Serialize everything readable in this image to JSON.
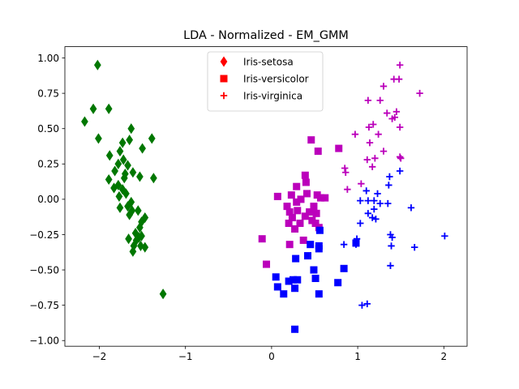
{
  "chart_data": {
    "type": "scatter",
    "title": "LDA - Normalized - EM_GMM",
    "xlabel": "",
    "ylabel": "",
    "xlim": [
      -2.4,
      2.27
    ],
    "ylim": [
      -1.04,
      1.08
    ],
    "x_ticks": [
      -2,
      -1,
      0,
      1,
      2
    ],
    "x_tick_labels": [
      "−2",
      "−1",
      "0",
      "1",
      "2"
    ],
    "y_ticks": [
      -1.0,
      -0.75,
      -0.5,
      -0.25,
      0.0,
      0.25,
      0.5,
      0.75,
      1.0
    ],
    "y_tick_labels": [
      "−1.00",
      "−0.75",
      "−0.50",
      "−0.25",
      "0.00",
      "0.25",
      "0.50",
      "0.75",
      "1.00"
    ],
    "grid": false,
    "legend_position": "top-center",
    "legend": [
      {
        "label": "Iris-setosa",
        "marker": "diamond",
        "color": "#ff0000"
      },
      {
        "label": "Iris-versicolor",
        "marker": "square",
        "color": "#ff0000"
      },
      {
        "label": "Iris-virginica",
        "marker": "plus",
        "color": "#ff0000"
      }
    ],
    "series": [
      {
        "name": "Iris-setosa",
        "marker": "diamond",
        "color": "#007700",
        "points": [
          [
            -2.02,
            0.95
          ],
          [
            -2.07,
            0.64
          ],
          [
            -1.89,
            0.64
          ],
          [
            -2.17,
            0.55
          ],
          [
            -1.63,
            0.5
          ],
          [
            -2.01,
            0.43
          ],
          [
            -1.39,
            0.43
          ],
          [
            -1.73,
            0.4
          ],
          [
            -1.65,
            0.42
          ],
          [
            -1.5,
            0.36
          ],
          [
            -1.88,
            0.31
          ],
          [
            -1.76,
            0.34
          ],
          [
            -1.72,
            0.28
          ],
          [
            -1.78,
            0.25
          ],
          [
            -1.67,
            0.24
          ],
          [
            -1.82,
            0.2
          ],
          [
            -1.7,
            0.18
          ],
          [
            -1.61,
            0.19
          ],
          [
            -1.89,
            0.14
          ],
          [
            -1.71,
            0.15
          ],
          [
            -1.53,
            0.16
          ],
          [
            -1.37,
            0.15
          ],
          [
            -1.78,
            0.1
          ],
          [
            -1.73,
            0.07
          ],
          [
            -1.83,
            0.08
          ],
          [
            -1.77,
            0.02
          ],
          [
            -1.69,
            0.04
          ],
          [
            -1.63,
            -0.02
          ],
          [
            -1.76,
            -0.06
          ],
          [
            -1.67,
            -0.05
          ],
          [
            -1.62,
            -0.08
          ],
          [
            -1.55,
            -0.08
          ],
          [
            -1.65,
            -0.11
          ],
          [
            -1.51,
            -0.16
          ],
          [
            -1.47,
            -0.13
          ],
          [
            -1.53,
            -0.2
          ],
          [
            -1.58,
            -0.24
          ],
          [
            -1.54,
            -0.27
          ],
          [
            -1.66,
            -0.28
          ],
          [
            -1.51,
            -0.26
          ],
          [
            -1.57,
            -0.29
          ],
          [
            -1.52,
            -0.33
          ],
          [
            -1.6,
            -0.33
          ],
          [
            -1.47,
            -0.34
          ],
          [
            -1.61,
            -0.37
          ],
          [
            -1.26,
            -0.67
          ]
        ]
      },
      {
        "name": "Iris-versicolor",
        "marker": "square",
        "color": "#bb00bb",
        "points": [
          [
            0.46,
            0.42
          ],
          [
            0.54,
            0.34
          ],
          [
            0.78,
            0.36
          ],
          [
            0.39,
            0.17
          ],
          [
            0.4,
            0.12
          ],
          [
            0.29,
            0.09
          ],
          [
            0.07,
            0.02
          ],
          [
            0.23,
            0.03
          ],
          [
            0.34,
            0.0
          ],
          [
            0.57,
            0.01
          ],
          [
            0.62,
            0.01
          ],
          [
            0.41,
            0.04
          ],
          [
            0.53,
            0.03
          ],
          [
            0.29,
            -0.02
          ],
          [
            0.18,
            -0.05
          ],
          [
            0.49,
            -0.05
          ],
          [
            0.3,
            -0.08
          ],
          [
            0.21,
            -0.09
          ],
          [
            0.44,
            -0.09
          ],
          [
            0.52,
            -0.1
          ],
          [
            0.24,
            -0.13
          ],
          [
            0.39,
            -0.12
          ],
          [
            0.47,
            -0.15
          ],
          [
            0.2,
            -0.17
          ],
          [
            0.33,
            -0.17
          ],
          [
            0.27,
            -0.21
          ],
          [
            0.51,
            -0.17
          ],
          [
            0.55,
            -0.2
          ],
          [
            -0.11,
            -0.28
          ],
          [
            0.37,
            -0.29
          ],
          [
            0.21,
            -0.32
          ],
          [
            -0.06,
            -0.46
          ]
        ]
      },
      {
        "name": "Iris-versicolor",
        "marker": "square",
        "color": "#0000ff",
        "points": [
          [
            0.56,
            -0.22
          ],
          [
            0.45,
            -0.32
          ],
          [
            0.55,
            -0.33
          ],
          [
            0.55,
            -0.35
          ],
          [
            0.42,
            -0.4
          ],
          [
            0.28,
            -0.42
          ],
          [
            0.98,
            -0.31
          ],
          [
            0.84,
            -0.49
          ],
          [
            0.49,
            -0.5
          ],
          [
            0.05,
            -0.55
          ],
          [
            0.25,
            -0.57
          ],
          [
            0.2,
            -0.58
          ],
          [
            0.3,
            -0.57
          ],
          [
            0.51,
            -0.56
          ],
          [
            0.77,
            -0.59
          ],
          [
            0.07,
            -0.62
          ],
          [
            0.27,
            -0.63
          ],
          [
            0.14,
            -0.67
          ],
          [
            0.55,
            -0.67
          ],
          [
            0.27,
            -0.92
          ]
        ]
      },
      {
        "name": "Iris-virginica",
        "marker": "plus",
        "color": "#bb00bb",
        "points": [
          [
            1.49,
            0.95
          ],
          [
            1.3,
            0.8
          ],
          [
            1.42,
            0.85
          ],
          [
            1.48,
            0.85
          ],
          [
            1.72,
            0.75
          ],
          [
            1.12,
            0.7
          ],
          [
            1.26,
            0.7
          ],
          [
            1.45,
            0.62
          ],
          [
            1.34,
            0.61
          ],
          [
            1.43,
            0.58
          ],
          [
            1.4,
            0.57
          ],
          [
            1.18,
            0.53
          ],
          [
            1.13,
            0.51
          ],
          [
            1.49,
            0.51
          ],
          [
            0.97,
            0.46
          ],
          [
            1.24,
            0.46
          ],
          [
            1.14,
            0.4
          ],
          [
            1.3,
            0.34
          ],
          [
            1.49,
            0.3
          ],
          [
            1.2,
            0.29
          ],
          [
            1.11,
            0.28
          ],
          [
            1.5,
            0.29
          ],
          [
            1.17,
            0.23
          ],
          [
            0.85,
            0.22
          ],
          [
            0.86,
            0.19
          ],
          [
            1.04,
            0.11
          ],
          [
            0.88,
            0.07
          ]
        ]
      },
      {
        "name": "Iris-virginica",
        "marker": "plus",
        "color": "#0000ff",
        "points": [
          [
            1.37,
            0.16
          ],
          [
            1.49,
            0.2
          ],
          [
            1.36,
            0.1
          ],
          [
            1.1,
            0.06
          ],
          [
            1.23,
            0.04
          ],
          [
            1.03,
            -0.01
          ],
          [
            1.12,
            -0.01
          ],
          [
            1.19,
            -0.01
          ],
          [
            1.26,
            -0.03
          ],
          [
            1.35,
            -0.03
          ],
          [
            1.62,
            -0.06
          ],
          [
            1.19,
            -0.07
          ],
          [
            1.12,
            -0.1
          ],
          [
            1.03,
            -0.17
          ],
          [
            1.17,
            -0.13
          ],
          [
            1.21,
            -0.14
          ],
          [
            1.4,
            -0.27
          ],
          [
            2.01,
            -0.26
          ],
          [
            1.38,
            -0.25
          ],
          [
            0.99,
            -0.28
          ],
          [
            0.84,
            -0.32
          ],
          [
            0.98,
            -0.32
          ],
          [
            1.39,
            -0.33
          ],
          [
            1.66,
            -0.34
          ],
          [
            1.38,
            -0.47
          ],
          [
            1.05,
            -0.75
          ],
          [
            1.11,
            -0.74
          ]
        ]
      }
    ]
  }
}
